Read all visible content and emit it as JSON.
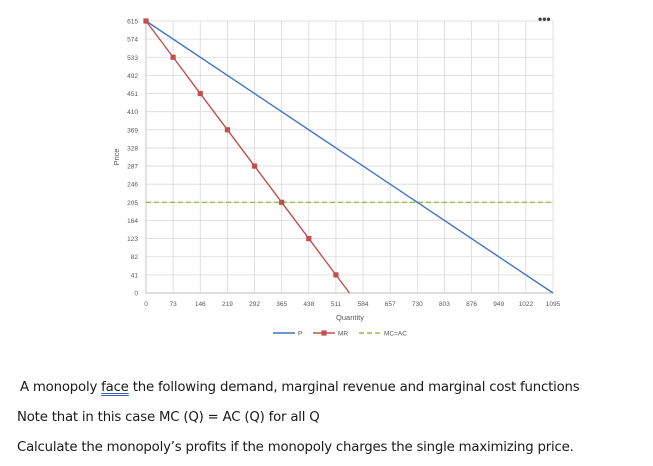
{
  "chart_data": {
    "type": "line",
    "title": "",
    "xlabel": "Quantity",
    "ylabel": "Price",
    "x_ticks": [
      0,
      73,
      146,
      219,
      292,
      365,
      438,
      511,
      584,
      657,
      730,
      803,
      876,
      949,
      1022,
      1095
    ],
    "y_ticks": [
      0,
      41,
      82,
      123,
      164,
      205,
      246,
      287,
      328,
      369,
      410,
      451,
      492,
      533,
      574,
      615
    ],
    "xlim": [
      0,
      1095
    ],
    "ylim": [
      0,
      615
    ],
    "grid": true,
    "legend_position": "bottom",
    "series": [
      {
        "name": "P",
        "color": "#4472c4",
        "style": "solid",
        "markers": false,
        "x": [
          0,
          1095
        ],
        "y": [
          615,
          0
        ]
      },
      {
        "name": "MR",
        "color": "#c0504d",
        "style": "solid",
        "markers": true,
        "x": [
          0,
          73,
          146,
          219,
          292,
          365,
          438,
          511,
          547.5
        ],
        "y": [
          615,
          533,
          451,
          369,
          287,
          205,
          123,
          41,
          0
        ],
        "marker_x": [
          0,
          73,
          146,
          219,
          292,
          365,
          438,
          511
        ]
      },
      {
        "name": "MC=AC",
        "color": "#9bbb59",
        "style": "dashed",
        "markers": false,
        "x": [
          0,
          1095
        ],
        "y": [
          205,
          205
        ]
      }
    ]
  },
  "chart_menu": {
    "icon": "more-options-icon",
    "label": "•••"
  },
  "text": {
    "line1_before": "A monopoly ",
    "line1_flagged": "face",
    "line1_after": " the following demand, marginal revenue and marginal cost functions",
    "line2": "Note that in this case MC (Q) = AC (Q) for all Q",
    "line3": "Calculate the monopoly’s profits if the monopoly charges the single maximizing price."
  }
}
